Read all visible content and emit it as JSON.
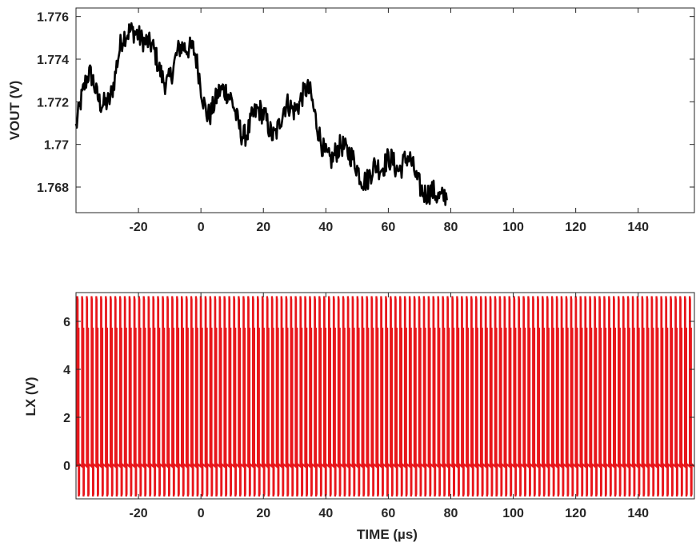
{
  "chart_data": [
    {
      "type": "line",
      "title": "",
      "xlabel": "",
      "ylabel": "VOUT (V)",
      "xlim": [
        -40,
        158
      ],
      "ylim": [
        1.7668,
        1.7764
      ],
      "x_ticks": [
        -20,
        0,
        20,
        40,
        60,
        80,
        100,
        120,
        140
      ],
      "x_tick_labels": [
        "-20",
        "0",
        "20",
        "40",
        "60",
        "80",
        "100",
        "120",
        "140"
      ],
      "y_ticks": [
        1.768,
        1.77,
        1.772,
        1.774,
        1.776
      ],
      "y_tick_labels": [
        "1.768",
        "1.77",
        "1.772",
        "1.774",
        "1.776"
      ],
      "grid": false,
      "line_color": "#000000",
      "series": [
        {
          "x_start": -40,
          "x_step": 0.5,
          "values": [
            1.7708,
            1.7712,
            1.7716,
            1.772,
            1.7723,
            1.7726,
            1.7729,
            1.7731,
            1.7733,
            1.7733,
            1.7732,
            1.773,
            1.7727,
            1.7724,
            1.7722,
            1.772,
            1.7719,
            1.7719,
            1.7719,
            1.7719,
            1.772,
            1.772,
            1.7722,
            1.7725,
            1.7728,
            1.7732,
            1.7737,
            1.7741,
            1.7745,
            1.7748,
            1.775,
            1.7751,
            1.7752,
            1.7752,
            1.7753,
            1.7753,
            1.7753,
            1.7753,
            1.7752,
            1.7752,
            1.7751,
            1.775,
            1.7749,
            1.7749,
            1.7748,
            1.7748,
            1.7748,
            1.7747,
            1.7747,
            1.7746,
            1.7744,
            1.7742,
            1.7739,
            1.7736,
            1.7734,
            1.7732,
            1.773,
            1.7729,
            1.7729,
            1.7729,
            1.7731,
            1.7733,
            1.7735,
            1.7738,
            1.7741,
            1.7743,
            1.7745,
            1.7746,
            1.7746,
            1.7746,
            1.7745,
            1.7745,
            1.7745,
            1.7745,
            1.7745,
            1.7745,
            1.7743,
            1.774,
            1.7736,
            1.7732,
            1.7727,
            1.7723,
            1.7719,
            1.7716,
            1.7714,
            1.7714,
            1.7714,
            1.7716,
            1.7718,
            1.772,
            1.7722,
            1.7724,
            1.7725,
            1.7725,
            1.7726,
            1.7725,
            1.7725,
            1.7724,
            1.7723,
            1.7722,
            1.772,
            1.7718,
            1.7715,
            1.7712,
            1.771,
            1.7707,
            1.7705,
            1.7704,
            1.7704,
            1.7705,
            1.7706,
            1.7708,
            1.7711,
            1.7713,
            1.7714,
            1.7715,
            1.7716,
            1.7716,
            1.7716,
            1.7715,
            1.7714,
            1.7713,
            1.7711,
            1.7709,
            1.7707,
            1.7705,
            1.7704,
            1.7704,
            1.7705,
            1.7707,
            1.7709,
            1.7712,
            1.7714,
            1.7717,
            1.7718,
            1.7719,
            1.7719,
            1.7718,
            1.7717,
            1.7716,
            1.7716,
            1.7717,
            1.7718,
            1.7719,
            1.7721,
            1.7723,
            1.7724,
            1.7726,
            1.7726,
            1.7725,
            1.7724,
            1.7721,
            1.7717,
            1.7714,
            1.771,
            1.7707,
            1.7704,
            1.7701,
            1.7699,
            1.7696,
            1.7695,
            1.7694,
            1.7693,
            1.7693,
            1.7693,
            1.7694,
            1.7696,
            1.7697,
            1.7698,
            1.7699,
            1.77,
            1.7699,
            1.7698,
            1.7697,
            1.7696,
            1.7696,
            1.7695,
            1.7694,
            1.7692,
            1.7691,
            1.7689,
            1.7687,
            1.7685,
            1.7684,
            1.7683,
            1.7683,
            1.7683,
            1.7684,
            1.7686,
            1.7687,
            1.7689,
            1.769,
            1.769,
            1.769,
            1.7689,
            1.7689,
            1.7689,
            1.769,
            1.7691,
            1.7693,
            1.7693,
            1.7693,
            1.7693,
            1.7692,
            1.769,
            1.7689,
            1.7688,
            1.7688,
            1.7689,
            1.769,
            1.7692,
            1.7693,
            1.7694,
            1.7694,
            1.7693,
            1.7691,
            1.7689,
            1.7687,
            1.7684,
            1.7682,
            1.7681,
            1.7679,
            1.7678,
            1.7677,
            1.7677,
            1.7677,
            1.7677,
            1.7678,
            1.7678,
            1.7678,
            1.7677,
            1.7676,
            1.7675,
            1.7675,
            1.7675,
            1.7675,
            1.7676,
            1.7676,
            1.7677
          ]
        }
      ]
    },
    {
      "type": "line",
      "title": "",
      "xlabel": "TIME (µs)",
      "ylabel": "LX (V)",
      "xlim": [
        -40,
        158
      ],
      "ylim": [
        -1.4,
        7.2
      ],
      "x_ticks": [
        -20,
        0,
        20,
        40,
        60,
        80,
        100,
        120,
        140
      ],
      "x_tick_labels": [
        "-20",
        "0",
        "20",
        "40",
        "60",
        "80",
        "100",
        "120",
        "140"
      ],
      "y_ticks": [
        0,
        2,
        4,
        6
      ],
      "y_tick_labels": [
        "0",
        "2",
        "4",
        "6"
      ],
      "grid": false,
      "line_color": "#e8161b",
      "series": [
        {
          "description_values": "switching waveform",
          "period_us": 1.52,
          "first_edge_us": -39.6,
          "high_v": 7.05,
          "low_v": -1.3,
          "levels_v": [
            7.05,
            5.7,
            0.05,
            -0.05,
            -1.3
          ]
        }
      ]
    }
  ]
}
